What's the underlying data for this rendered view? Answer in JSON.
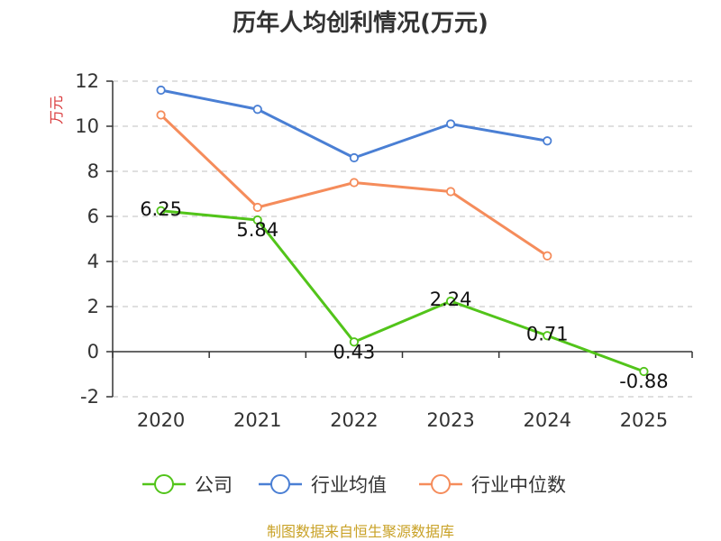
{
  "chart_data": {
    "type": "line",
    "title": "历年人均创利情况(万元)",
    "ylabel": "万元",
    "xlabel": "",
    "categories": [
      "2020",
      "2021",
      "2022",
      "2023",
      "2024",
      "2025"
    ],
    "ylim": [
      -2,
      12
    ],
    "yticks": [
      -2,
      0,
      2,
      4,
      6,
      8,
      10,
      12
    ],
    "grid": true,
    "legend_position": "bottom",
    "series": [
      {
        "name": "公司",
        "color": "#52c41a",
        "values": [
          6.25,
          5.84,
          0.43,
          2.24,
          0.71,
          -0.88
        ],
        "labels": [
          "6.25",
          "5.84",
          "0.43",
          "2.24",
          "0.71",
          "-0.88"
        ]
      },
      {
        "name": "行业均值",
        "color": "#4a7fd4",
        "values": [
          11.6,
          10.75,
          8.6,
          10.1,
          9.35,
          null
        ]
      },
      {
        "name": "行业中位数",
        "color": "#f58c5b",
        "values": [
          10.5,
          6.4,
          7.5,
          7.1,
          4.25,
          null
        ]
      }
    ],
    "source": "制图数据来自恒生聚源数据库",
    "colors": {
      "title": "#333333",
      "axis": "#333333",
      "grid": "#cccccc",
      "ylabel": "#d9383a",
      "source": "#c9a227"
    }
  }
}
